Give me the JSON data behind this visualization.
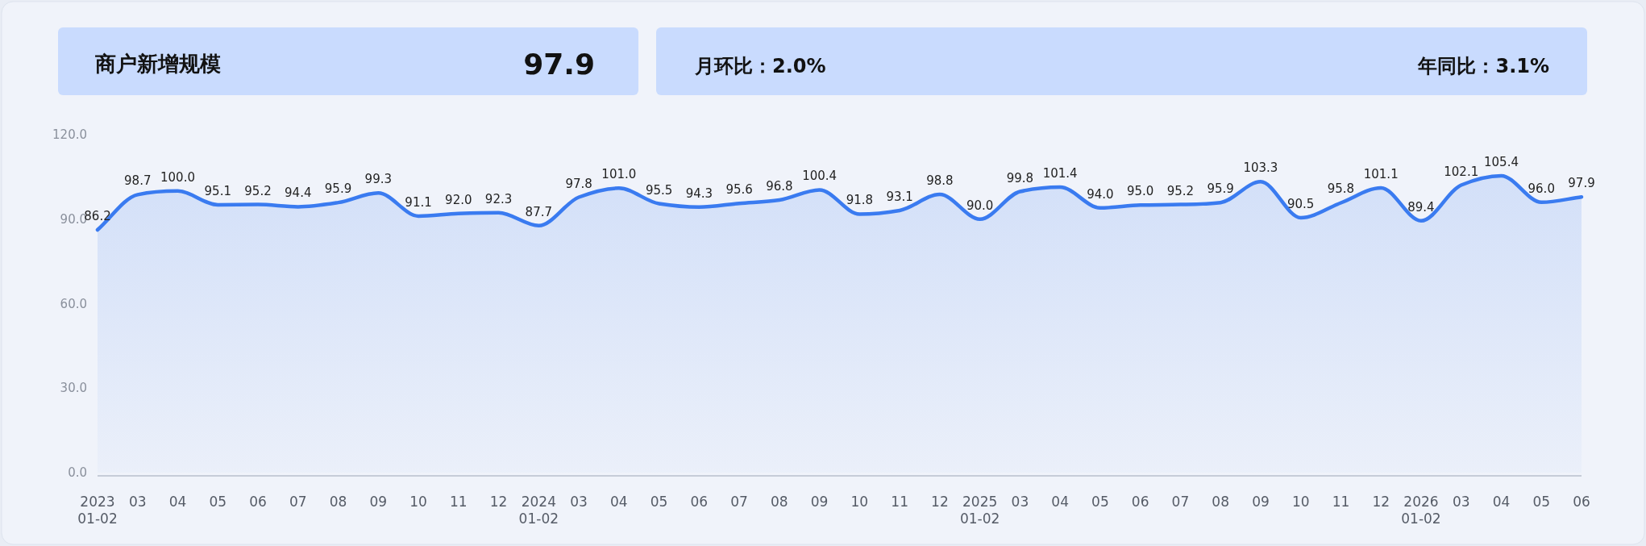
{
  "chart_data": [
    {
      "type": "other",
      "title": "商户新增规模",
      "annotations": [
        "97.9",
        "月环比：2.0%",
        "年同比：3.1%"
      ]
    },
    {
      "type": "area",
      "color": "#3a7bf0",
      "categories": [
        "2023\n01-02",
        "03",
        "04",
        "05",
        "06",
        "07",
        "08",
        "09",
        "10",
        "11",
        "12",
        "2024\n01-02",
        "03",
        "04",
        "05",
        "06",
        "07",
        "08",
        "09",
        "10",
        "11",
        "12",
        "2025\n01-02",
        "03",
        "04",
        "05",
        "06",
        "07",
        "08",
        "09",
        "10",
        "11",
        "12",
        "2026\n01-02",
        "03",
        "04",
        "05",
        "06"
      ],
      "values": [
        86.2,
        98.7,
        100.0,
        95.1,
        95.2,
        94.4,
        95.9,
        99.3,
        91.1,
        92.0,
        92.3,
        87.7,
        97.8,
        101.0,
        95.5,
        94.3,
        95.6,
        96.8,
        100.4,
        91.8,
        93.1,
        98.8,
        90.0,
        99.8,
        101.4,
        94.0,
        95.0,
        95.2,
        95.9,
        103.3,
        90.5,
        95.8,
        101.1,
        89.4,
        102.1,
        105.4,
        96.0,
        97.9
      ],
      "value_labels": [
        "86.2",
        "98.7",
        "100.0",
        "95.1",
        "95.2",
        "94.4",
        "95.9",
        "99.3",
        "91.1",
        "92.0",
        "92.3",
        "87.7",
        "97.8",
        "101.0",
        "95.5",
        "94.3",
        "95.6",
        "96.8",
        "100.4",
        "91.8",
        "93.1",
        "98.8",
        "90.0",
        "99.8",
        "101.4",
        "94.0",
        "95.0",
        "95.2",
        "95.9",
        "103.3",
        "90.5",
        "95.8",
        "101.1",
        "89.4",
        "102.1",
        "105.4",
        "96.0",
        "97.9"
      ],
      "ylim": [
        0,
        120
      ],
      "yticks": [
        {
          "value": 0,
          "label": "0.0"
        },
        {
          "value": 30,
          "label": "30.0"
        },
        {
          "value": 60,
          "label": "60.0"
        },
        {
          "value": 90,
          "label": "90.0"
        },
        {
          "value": 120,
          "label": "120.0"
        }
      ],
      "grid": false
    }
  ]
}
